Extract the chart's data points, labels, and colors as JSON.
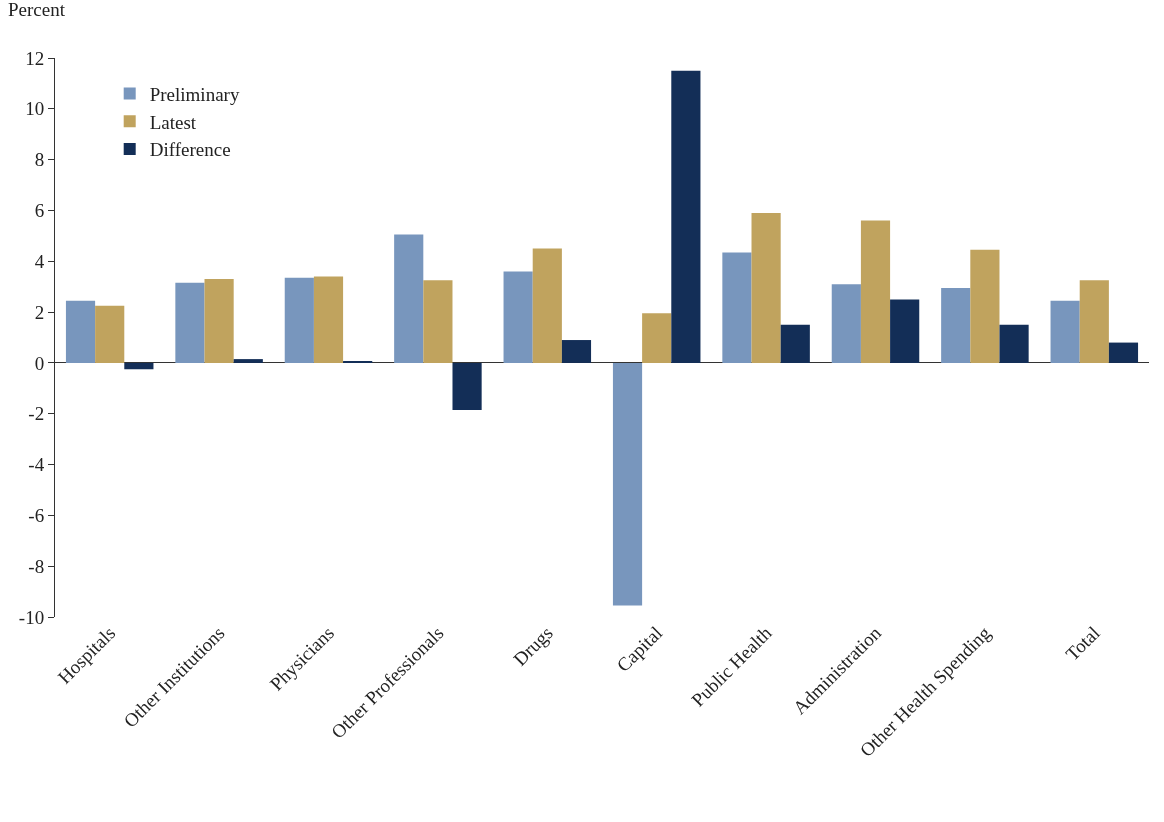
{
  "chart_data": {
    "type": "bar",
    "ylabel": "Percent",
    "categories": [
      "Hospitals",
      "Other Institutions",
      "Physicians",
      "Other Professionals",
      "Drugs",
      "Capital",
      "Public Health",
      "Administration",
      "Other Health Spending",
      "Total"
    ],
    "series": [
      {
        "name": "Preliminary",
        "color": "#7896bd",
        "values": [
          2.45,
          3.15,
          3.35,
          5.05,
          3.6,
          -9.55,
          4.35,
          3.1,
          2.95,
          2.45
        ]
      },
      {
        "name": "Latest",
        "color": "#c0a35e",
        "values": [
          2.25,
          3.3,
          3.4,
          3.25,
          4.5,
          1.95,
          5.9,
          5.6,
          4.45,
          3.25
        ]
      },
      {
        "name": "Difference",
        "color": "#132e57",
        "values": [
          -0.25,
          0.15,
          0.05,
          -1.85,
          0.9,
          11.5,
          1.5,
          2.5,
          1.5,
          0.8
        ]
      }
    ],
    "ylim": [
      -10,
      12
    ],
    "yticks": [
      -10,
      -8,
      -6,
      -4,
      -2,
      0,
      2,
      4,
      6,
      8,
      10,
      12
    ],
    "legend": "top left"
  }
}
